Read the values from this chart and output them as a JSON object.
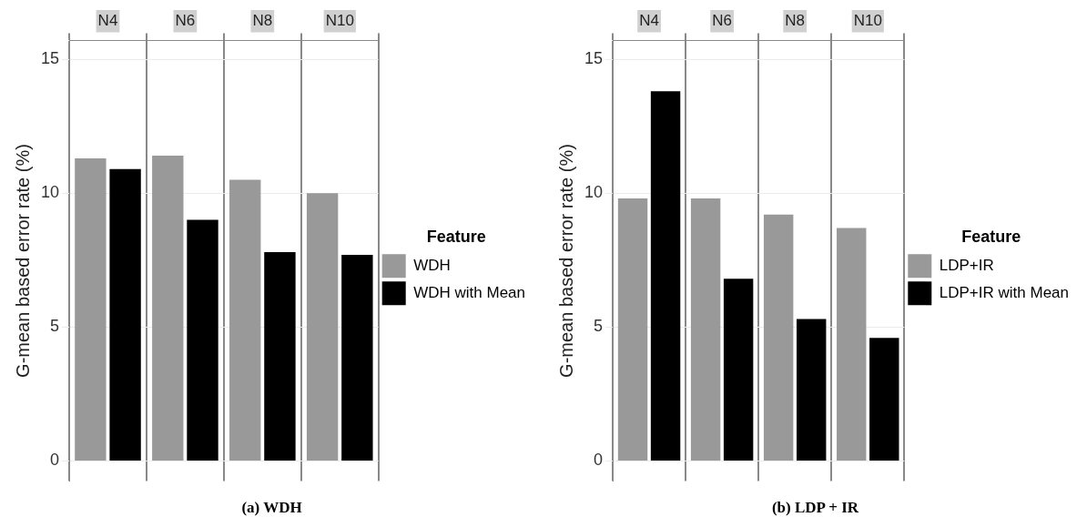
{
  "chart_data": [
    {
      "type": "bar",
      "title": "(a) WDH",
      "ylabel": "G-mean based error rate (%)",
      "legend_title": "Feature",
      "categories": [
        "N4",
        "N6",
        "N8",
        "N10"
      ],
      "series": [
        {
          "name": "WDH",
          "color": "#999999",
          "values": [
            11.3,
            11.4,
            10.5,
            10.0
          ]
        },
        {
          "name": "WDH with Mean",
          "color": "#000000",
          "values": [
            10.9,
            9.0,
            7.8,
            7.7
          ]
        }
      ],
      "ylim": [
        -0.75,
        15.7
      ],
      "yticks": [
        0,
        5,
        10,
        15
      ],
      "grid": true,
      "legend": "right"
    },
    {
      "type": "bar",
      "title": "(b) LDP + IR",
      "ylabel": "G-mean based error rate (%)",
      "legend_title": "Feature",
      "categories": [
        "N4",
        "N6",
        "N8",
        "N10"
      ],
      "series": [
        {
          "name": "LDP+IR",
          "color": "#999999",
          "values": [
            9.8,
            9.8,
            9.2,
            8.7
          ]
        },
        {
          "name": "LDP+IR with Mean",
          "color": "#000000",
          "values": [
            13.8,
            6.8,
            5.3,
            4.6
          ]
        }
      ],
      "ylim": [
        -0.75,
        15.7
      ],
      "yticks": [
        0,
        5,
        10,
        15
      ],
      "grid": true,
      "legend": "right"
    }
  ]
}
